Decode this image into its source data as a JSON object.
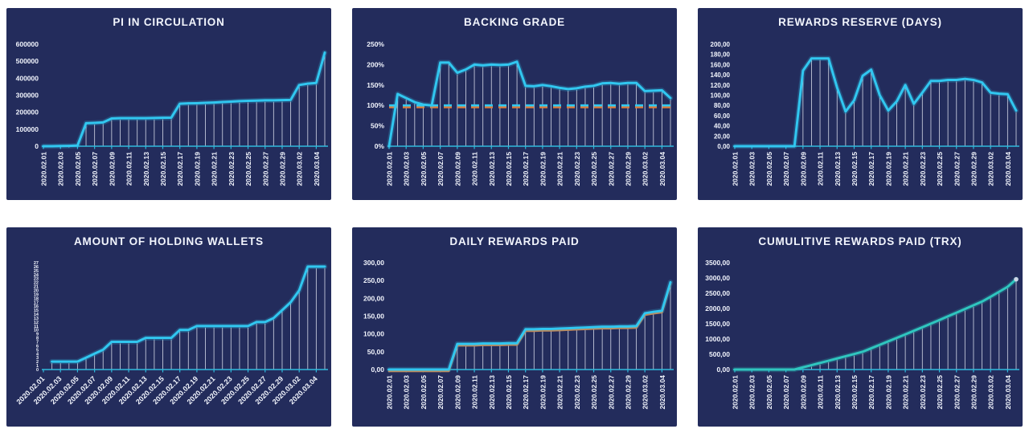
{
  "page": {
    "background": "#ffffff",
    "panel_background": "#232c5c"
  },
  "colors": {
    "axis_line": "#2fb9dc",
    "drop_line": "#e9ecf7",
    "label_text": "#f2f5fd",
    "cyan_line": "#31c7f0",
    "teal_line": "#2fc6bf",
    "orange_line": "#e07b39"
  },
  "x_labels": [
    "2020.02.01",
    "2020.02.03",
    "2020.02.05",
    "2020.02.07",
    "2020.02.09",
    "2020.02.11",
    "2020.02.13",
    "2020.02.15",
    "2020.02.17",
    "2020.02.19",
    "2020.02.21",
    "2020.02.23",
    "2020.02.25",
    "2020.02.27",
    "2020.02.29",
    "2020.03.02",
    "2020.03.04"
  ],
  "chart_data": [
    {
      "type": "line",
      "title": "PI IN CIRCULATION",
      "y_max": 600000,
      "y_tick_labels": [
        "0",
        "100000",
        "200000",
        "300000",
        "400000",
        "500000",
        "600000"
      ],
      "line_color": "#31c7f0",
      "x_label_style": "vertical",
      "values": [
        0,
        0,
        1000,
        2000,
        4000,
        135000,
        137000,
        140000,
        163000,
        165000,
        165000,
        165000,
        165000,
        166000,
        167000,
        168000,
        250000,
        252000,
        253000,
        255000,
        257000,
        260000,
        262000,
        265000,
        267000,
        268000,
        270000,
        270000,
        271000,
        272000,
        360000,
        368000,
        372000,
        550000
      ]
    },
    {
      "type": "line",
      "title": "BACKING GRADE",
      "y_max": 250,
      "y_tick_labels": [
        "0%",
        "50%",
        "100%",
        "150%",
        "200%",
        "250%"
      ],
      "line_color": "#31c7f0",
      "x_label_style": "vertical",
      "reference_line": {
        "value": 100,
        "style": "dashed",
        "color": "#31c7f0",
        "under_color": "#e07b39"
      },
      "values": [
        0,
        128,
        118,
        108,
        102,
        100,
        205,
        205,
        180,
        188,
        200,
        198,
        200,
        199,
        200,
        207,
        148,
        147,
        150,
        147,
        143,
        140,
        142,
        146,
        148,
        154,
        155,
        153,
        155,
        155,
        135,
        136,
        137,
        118
      ]
    },
    {
      "type": "line",
      "title": "REWARDS RESERVE (DAYS)",
      "y_max": 200,
      "y_tick_labels": [
        "0,00",
        "20,00",
        "40,00",
        "60,00",
        "80,00",
        "100,00",
        "120,00",
        "140,00",
        "160,00",
        "180,00",
        "200,00"
      ],
      "line_color": "#31c7f0",
      "x_label_style": "vertical",
      "values": [
        0,
        0,
        0,
        0,
        0,
        0,
        0,
        0,
        148,
        172,
        172,
        172,
        115,
        68,
        90,
        138,
        150,
        100,
        70,
        88,
        120,
        83,
        105,
        128,
        128,
        130,
        130,
        132,
        130,
        125,
        105,
        103,
        102,
        70
      ]
    },
    {
      "type": "line",
      "title": "AMOUNT OF HOLDING WALLETS",
      "y_max": 27,
      "y_tick_labels": [
        "0",
        "1",
        "2",
        "3",
        "4",
        "5",
        "6",
        "7",
        "8",
        "9",
        "10",
        "11",
        "12",
        "13",
        "14",
        "15",
        "16",
        "17",
        "18",
        "19",
        "20",
        "21",
        "22",
        "23",
        "24",
        "25",
        "26",
        "27"
      ],
      "line_color": "#31c7f0",
      "x_label_style": "diagonal",
      "values": [
        null,
        2,
        2,
        2,
        2,
        3,
        4,
        5,
        7,
        7,
        7,
        7,
        8,
        8,
        8,
        8,
        10,
        10,
        11,
        11,
        11,
        11,
        11,
        11,
        11,
        12,
        12,
        13,
        15,
        17,
        20,
        26,
        26,
        26
      ]
    },
    {
      "type": "line",
      "title": "DAILY REWARDS PAID",
      "y_max": 300,
      "y_tick_labels": [
        "0,00",
        "50,00",
        "100,00",
        "150,00",
        "200,00",
        "250,00",
        "300,00"
      ],
      "line_color": "#31c7f0",
      "under_line_color": "#e07b39",
      "x_label_style": "vertical",
      "values": [
        0,
        0,
        0,
        0,
        0,
        0,
        0,
        0,
        72,
        72,
        72,
        73,
        73,
        73,
        74,
        74,
        113,
        113,
        114,
        114,
        115,
        116,
        117,
        118,
        119,
        120,
        120,
        121,
        121,
        122,
        158,
        162,
        165,
        245
      ]
    },
    {
      "type": "line",
      "title": "CUMULITIVE REWARDS PAID (TRX)",
      "y_max": 3500,
      "y_tick_labels": [
        "0,00",
        "500,00",
        "1000,00",
        "1500,00",
        "2000,00",
        "2500,00",
        "3000,00",
        "3500,00"
      ],
      "line_color": "#2fc6bf",
      "end_marker": true,
      "x_label_style": "vertical",
      "values": [
        0,
        0,
        0,
        0,
        0,
        0,
        0,
        0,
        72,
        144,
        216,
        289,
        362,
        435,
        509,
        583,
        696,
        809,
        923,
        1037,
        1152,
        1268,
        1385,
        1503,
        1622,
        1742,
        1862,
        1983,
        2104,
        2226,
        2384,
        2546,
        2711,
        2956
      ]
    }
  ]
}
